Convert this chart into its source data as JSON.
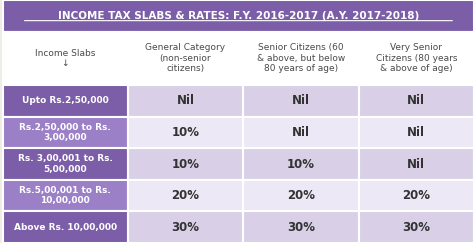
{
  "title": "INCOME TAX SLABS & RATES: F.Y. 2016-2017 (A.Y. 2017-2018)",
  "col_headers": [
    "Income Slabs\n↓",
    "General Category\n(non-senior\ncitizens)",
    "Senior Citizens (60\n& above, but below\n80 years of age)",
    "Very Senior\nCitizens (80 years\n& above of age)"
  ],
  "row_labels": [
    "Upto Rs.2,50,000",
    "Rs.2,50,000 to Rs.\n3,00,000",
    "Rs. 3,00,001 to Rs.\n5,00,000",
    "Rs.5,00,001 to Rs.\n10,00,000",
    "Above Rs. 10,00,000"
  ],
  "data": [
    [
      "Nil",
      "Nil",
      "Nil"
    ],
    [
      "10%",
      "Nil",
      "Nil"
    ],
    [
      "10%",
      "10%",
      "Nil"
    ],
    [
      "20%",
      "20%",
      "20%"
    ],
    [
      "30%",
      "30%",
      "30%"
    ]
  ],
  "title_bg": "#7b5ea7",
  "title_fg": "#ffffff",
  "header_bg": "#ffffff",
  "header_fg": "#555555",
  "row_label_bg_odd": "#7b5ea7",
  "row_label_bg_even": "#9b7fc7",
  "row_label_fg": "#ffffff",
  "data_bg_odd": "#d9d0e8",
  "data_bg_even": "#ede8f5",
  "data_fg": "#555555",
  "border_color": "#ffffff",
  "figsize": [
    4.74,
    2.43
  ],
  "dpi": 100
}
